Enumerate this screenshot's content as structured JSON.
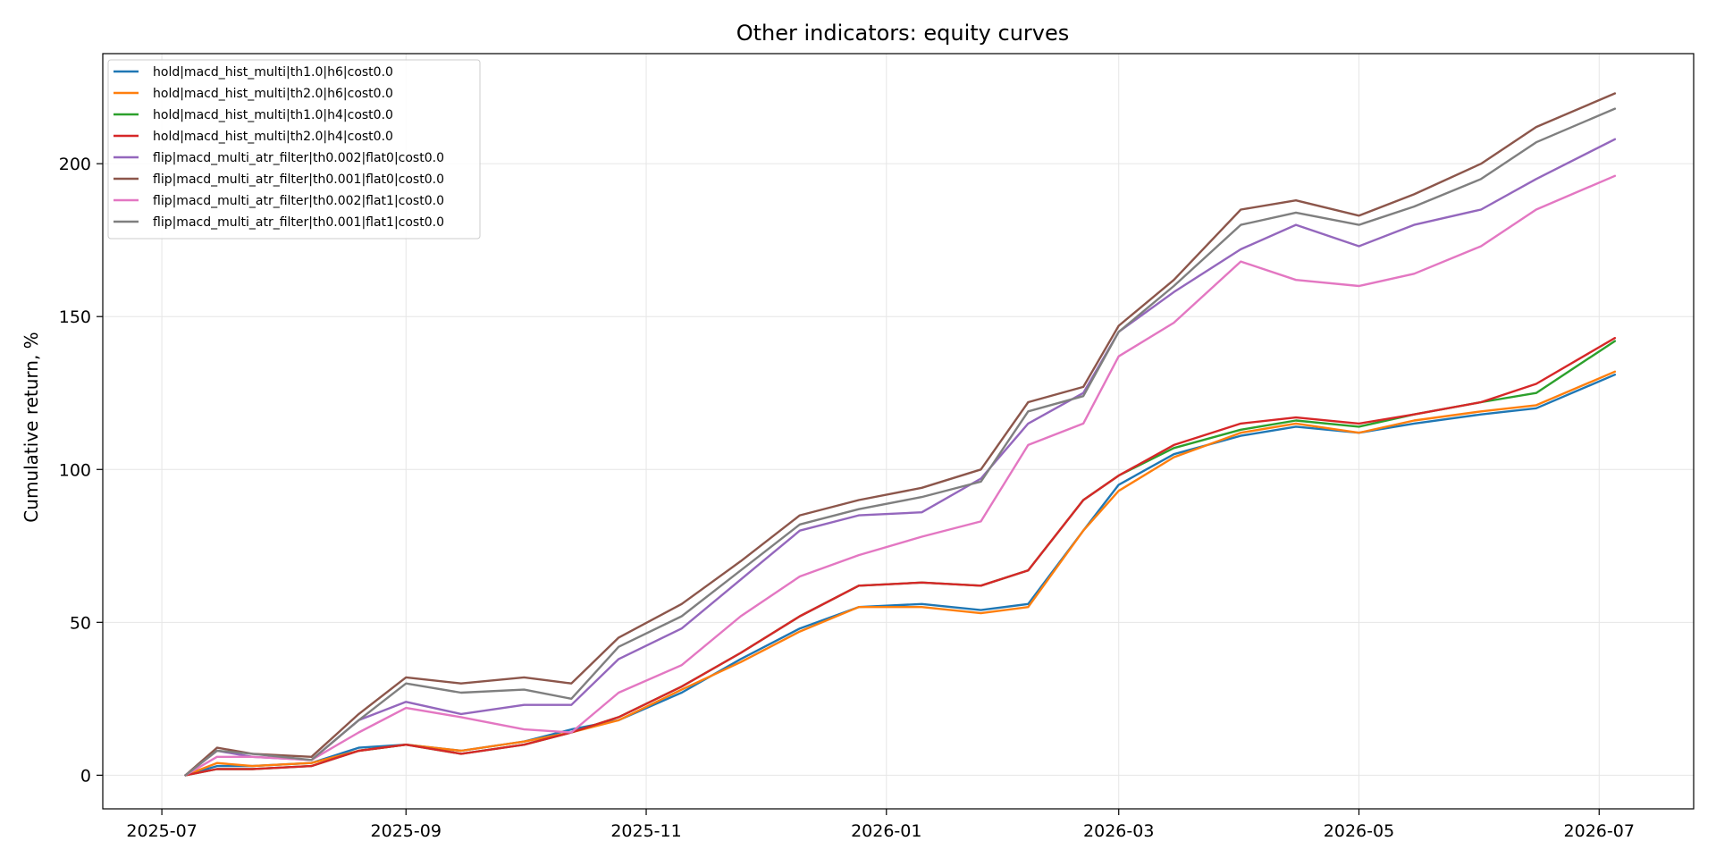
{
  "chart_data": {
    "type": "line",
    "title": "Other indicators: equity curves",
    "xlabel": "",
    "ylabel": "Cumulative return, %",
    "x_axis_type": "date",
    "xlim": [
      "2025-06-16",
      "2026-07-25"
    ],
    "ylim": [
      -11,
      236
    ],
    "x_ticks": [
      "2025-07",
      "2025-09",
      "2025-11",
      "2026-01",
      "2026-03",
      "2026-05",
      "2026-07"
    ],
    "y_ticks": [
      0,
      50,
      100,
      150,
      200
    ],
    "grid": true,
    "legend_position": "top-left",
    "x": [
      "2025-07-07",
      "2025-07-15",
      "2025-07-24",
      "2025-08-08",
      "2025-08-20",
      "2025-09-01",
      "2025-09-15",
      "2025-10-01",
      "2025-10-13",
      "2025-10-25",
      "2025-11-10",
      "2025-11-25",
      "2025-12-10",
      "2025-12-25",
      "2026-01-10",
      "2026-01-25",
      "2026-02-06",
      "2026-02-20",
      "2026-03-01",
      "2026-03-15",
      "2026-04-01",
      "2026-04-15",
      "2026-05-01",
      "2026-05-15",
      "2026-06-01",
      "2026-06-15",
      "2026-07-05"
    ],
    "series": [
      {
        "name": "hold|macd_hist_multi|th1.0|h6|cost0.0",
        "color": "#1f77b4",
        "values": [
          0,
          3,
          3,
          4,
          9,
          10,
          8,
          11,
          15,
          18,
          27,
          38,
          48,
          55,
          56,
          54,
          56,
          80,
          95,
          105,
          111,
          114,
          112,
          115,
          118,
          120,
          131
        ]
      },
      {
        "name": "hold|macd_hist_multi|th2.0|h6|cost0.0",
        "color": "#ff7f0e",
        "values": [
          0,
          4,
          3,
          4,
          8,
          10,
          8,
          11,
          14,
          18,
          28,
          37,
          47,
          55,
          55,
          53,
          55,
          80,
          93,
          104,
          112,
          115,
          112,
          116,
          119,
          121,
          132
        ]
      },
      {
        "name": "hold|macd_hist_multi|th1.0|h4|cost0.0",
        "color": "#2ca02c",
        "values": [
          0,
          2,
          2,
          3,
          8,
          10,
          7,
          10,
          14,
          19,
          29,
          40,
          52,
          62,
          63,
          62,
          67,
          90,
          98,
          107,
          113,
          116,
          114,
          118,
          122,
          125,
          142
        ]
      },
      {
        "name": "hold|macd_hist_multi|th2.0|h4|cost0.0",
        "color": "#d62728",
        "values": [
          0,
          2,
          2,
          3,
          8,
          10,
          7,
          10,
          14,
          19,
          29,
          40,
          52,
          62,
          63,
          62,
          67,
          90,
          98,
          108,
          115,
          117,
          115,
          118,
          122,
          128,
          143
        ]
      },
      {
        "name": "flip|macd_multi_atr_filter|th0.002|flat0|cost0.0",
        "color": "#9467bd",
        "values": [
          0,
          8,
          6,
          5,
          18,
          24,
          20,
          23,
          23,
          38,
          48,
          64,
          80,
          85,
          86,
          97,
          115,
          125,
          145,
          158,
          172,
          180,
          173,
          180,
          185,
          195,
          208
        ]
      },
      {
        "name": "flip|macd_multi_atr_filter|th0.001|flat0|cost0.0",
        "color": "#8c564b",
        "values": [
          0,
          9,
          7,
          6,
          20,
          32,
          30,
          32,
          30,
          45,
          56,
          70,
          85,
          90,
          94,
          100,
          122,
          127,
          147,
          162,
          185,
          188,
          183,
          190,
          200,
          212,
          223
        ]
      },
      {
        "name": "flip|macd_multi_atr_filter|th0.002|flat1|cost0.0",
        "color": "#e377c2",
        "values": [
          0,
          6,
          6,
          5,
          14,
          22,
          19,
          15,
          14,
          27,
          36,
          52,
          65,
          72,
          78,
          83,
          108,
          115,
          137,
          148,
          168,
          162,
          160,
          164,
          173,
          185,
          196
        ]
      },
      {
        "name": "flip|macd_multi_atr_filter|th0.001|flat1|cost0.0",
        "color": "#7f7f7f",
        "values": [
          0,
          8,
          7,
          5,
          18,
          30,
          27,
          28,
          25,
          42,
          52,
          67,
          82,
          87,
          91,
          96,
          119,
          124,
          145,
          160,
          180,
          184,
          180,
          186,
          195,
          207,
          218
        ]
      }
    ]
  }
}
